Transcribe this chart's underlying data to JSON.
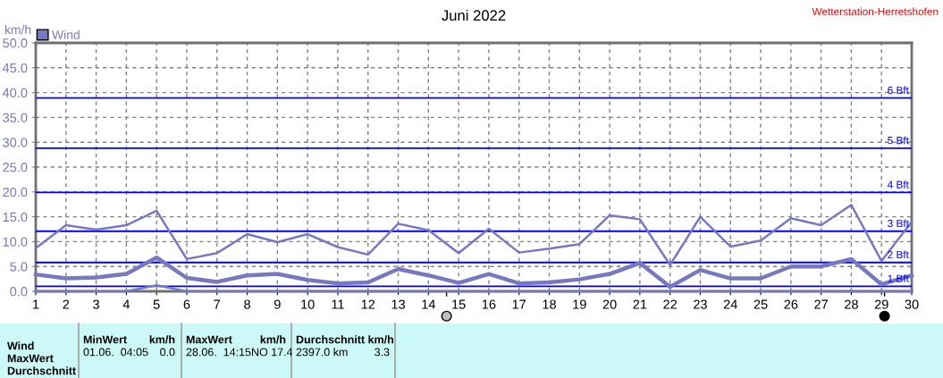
{
  "chart_data": {
    "type": "line",
    "title": "Juni 2022",
    "ylabel": "km/h",
    "x": [
      1,
      2,
      3,
      4,
      5,
      6,
      7,
      8,
      9,
      10,
      11,
      12,
      13,
      14,
      15,
      16,
      17,
      18,
      19,
      20,
      21,
      22,
      23,
      24,
      25,
      26,
      27,
      28,
      29,
      30
    ],
    "series": [
      {
        "color": "#7878c0",
        "values": [
          8.7,
          13.3,
          12.4,
          13.3,
          16.2,
          6.5,
          7.7,
          11.5,
          9.9,
          11.5,
          8.9,
          7.4,
          13.6,
          12.3,
          7.7,
          12.6,
          7.8,
          8.6,
          9.5,
          15.3,
          14.5,
          5.3,
          15.0,
          9.0,
          10.2,
          14.7,
          13.3,
          17.4,
          6.1,
          14.0
        ]
      },
      {
        "name": "Wind",
        "color": "#7878c0",
        "values": [
          3.4,
          2.6,
          2.8,
          3.5,
          6.8,
          2.7,
          1.9,
          3.2,
          3.5,
          2.3,
          1.6,
          1.8,
          4.5,
          3.2,
          1.7,
          3.5,
          1.6,
          1.8,
          2.4,
          3.5,
          5.7,
          0.9,
          4.3,
          2.6,
          2.6,
          5.0,
          5.0,
          6.5,
          1.4,
          3.2
        ]
      },
      {
        "color": "#7878c0",
        "values": [
          0,
          0,
          0,
          0,
          1.2,
          0,
          0,
          0,
          0,
          0,
          0,
          0,
          0,
          0,
          0,
          0,
          0,
          0,
          0,
          0,
          0,
          0,
          0,
          0,
          0,
          0,
          0,
          0,
          0,
          0
        ]
      }
    ],
    "xlim": [
      1,
      30
    ],
    "xticks": [
      1,
      2,
      3,
      4,
      5,
      6,
      7,
      8,
      9,
      10,
      11,
      12,
      13,
      14,
      15,
      16,
      17,
      18,
      19,
      20,
      21,
      22,
      23,
      24,
      25,
      26,
      27,
      28,
      29,
      30
    ],
    "ylim": [
      0,
      50
    ],
    "yticks": [
      {
        "value": 0,
        "label": "0.0"
      },
      {
        "value": 5,
        "label": "5.0"
      },
      {
        "value": 10,
        "label": "10.0"
      },
      {
        "value": 15,
        "label": "15.0"
      },
      {
        "value": 20,
        "label": "20.0"
      },
      {
        "value": 25,
        "label": "25.0"
      },
      {
        "value": 30,
        "label": "30.0"
      },
      {
        "value": 35,
        "label": "35.0"
      },
      {
        "value": 40,
        "label": "40.0"
      },
      {
        "value": 45,
        "label": "45.0"
      },
      {
        "value": 50,
        "label": "50.0"
      }
    ],
    "ref_lines": [
      {
        "axis": "y",
        "value": 1.0,
        "label": "1 Bft",
        "color": "#0000ff"
      },
      {
        "axis": "y",
        "value": 5.8,
        "label": "2 Bft",
        "color": "#0000ff"
      },
      {
        "axis": "y",
        "value": 12.1,
        "label": "3 Bft",
        "color": "#0000ff"
      },
      {
        "axis": "y",
        "value": 19.9,
        "label": "4 Bft",
        "color": "#0000ff"
      },
      {
        "axis": "y",
        "value": 28.8,
        "label": "5 Bft",
        "color": "#0000ff"
      },
      {
        "axis": "y",
        "value": 38.9,
        "label": "6 Bft",
        "color": "#0000ff"
      }
    ],
    "grid": true,
    "legend": "top left",
    "marker": "none",
    "line_style": "solid",
    "annotations": [
      "Wetterstation-Herretshofen",
      "Wind",
      "MaxWert",
      "Durchschnitt",
      "MinWert",
      "km/h",
      "01.06.  04:05",
      "0.0",
      "MaxWert",
      "km/h",
      "28.06.  14:15NO 17.4",
      "Durchschnitt km/h",
      "2397.0 km",
      "3.3"
    ]
  }
}
